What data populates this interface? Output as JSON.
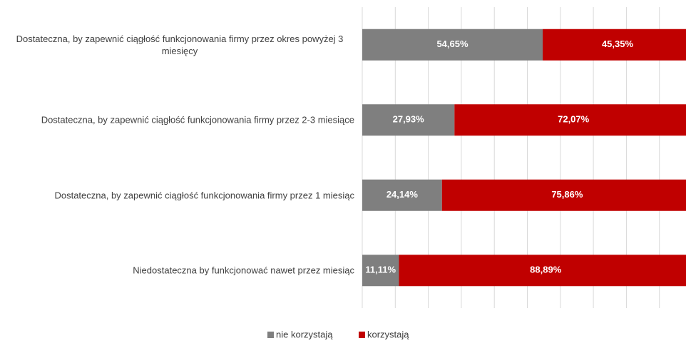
{
  "chart_data": {
    "type": "stacked_bar_horizontal",
    "categories": [
      "Dostateczna, by zapewnić ciągłość funkcjonowania firmy przez okres powyżej 3 miesięcy",
      "Dostateczna, by zapewnić ciągłość funkcjonowania firmy przez 2-3 miesiące",
      "Dostateczna, by zapewnić ciągłość funkcjonowania firmy przez 1 miesiąc",
      "Niedostateczna by funkcjonować nawet przez miesiąc"
    ],
    "series": [
      {
        "name": "nie korzystają",
        "color": "#7f7f7f",
        "values": [
          54.65,
          27.93,
          24.14,
          11.11
        ],
        "value_labels": [
          "54,65%",
          "27,93%",
          "24,14%",
          "11,11%"
        ]
      },
      {
        "name": "korzystają",
        "color": "#c00000",
        "values": [
          45.35,
          72.07,
          75.86,
          88.89
        ],
        "value_labels": [
          "45,35%",
          "72,07%",
          "75,86%",
          "88,89%"
        ]
      }
    ],
    "xlim": [
      0,
      100
    ],
    "xticks": [
      0,
      10,
      20,
      30,
      40,
      50,
      60,
      70,
      80,
      90,
      100
    ],
    "grid": true,
    "legend": "bottom"
  }
}
